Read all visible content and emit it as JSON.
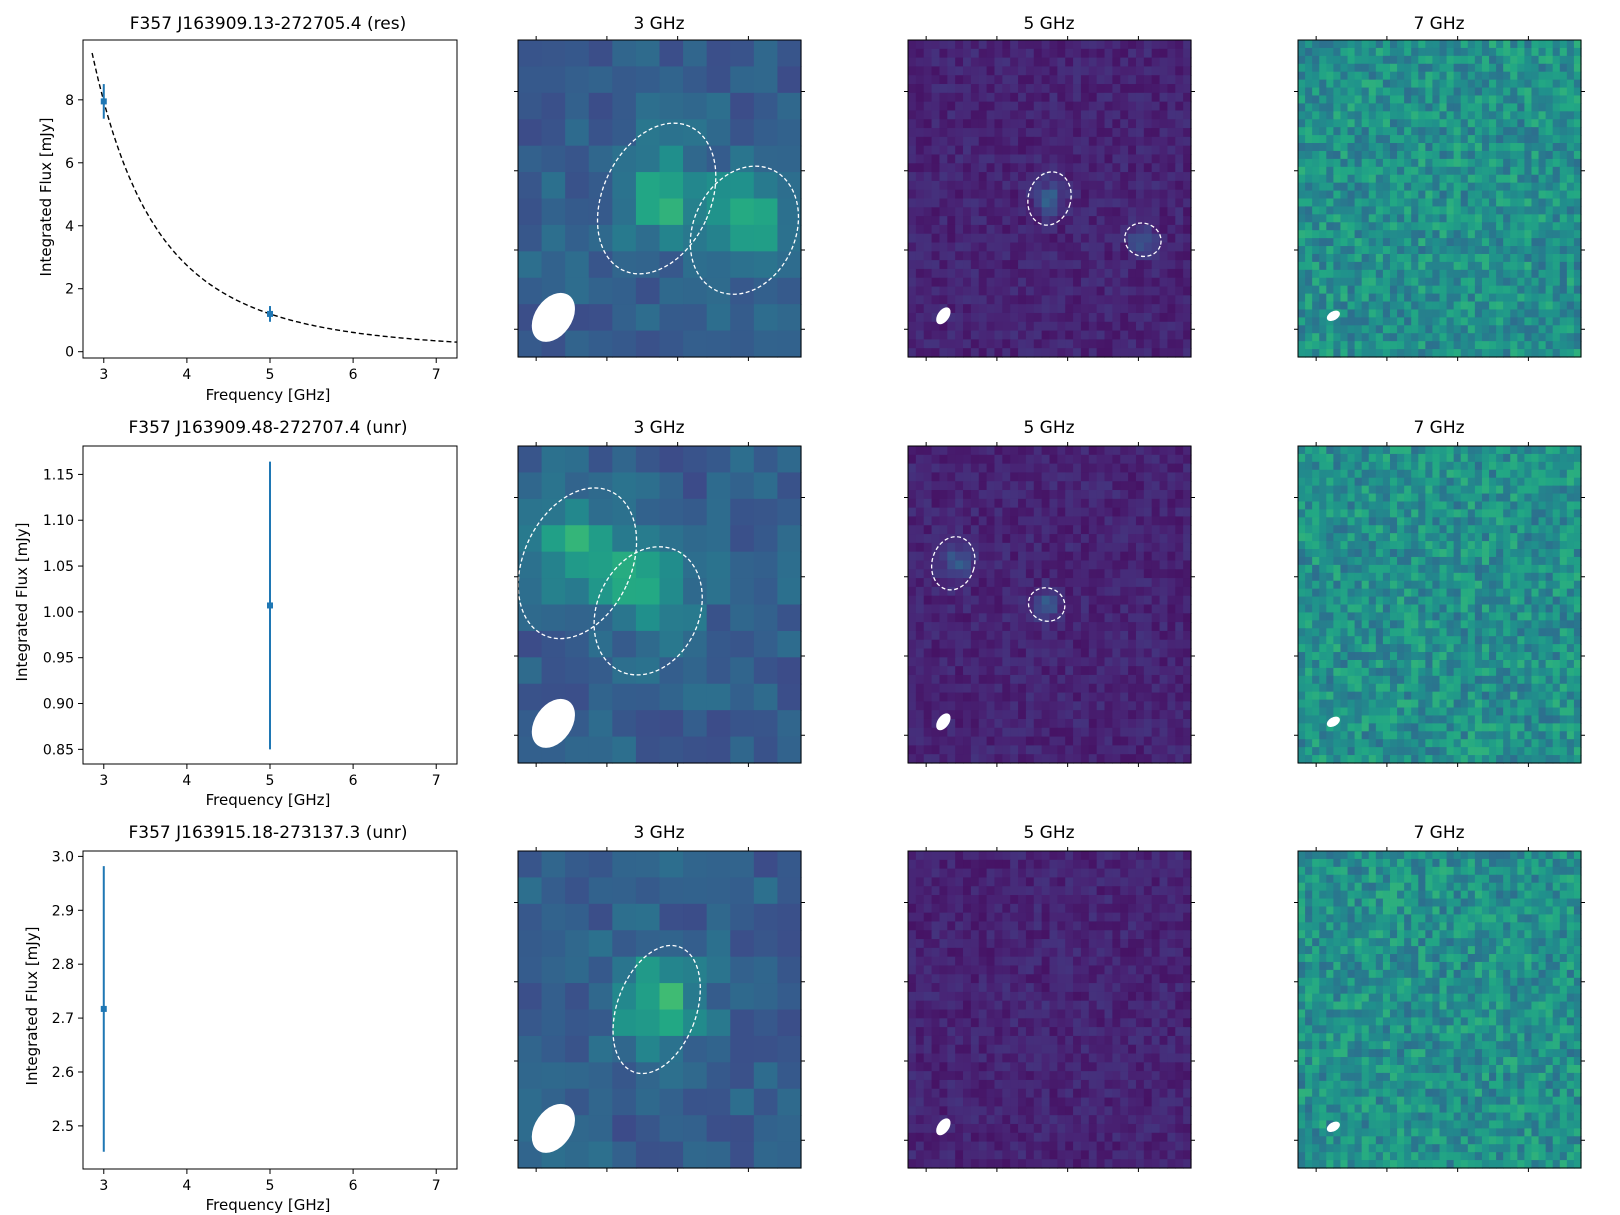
{
  "chart_data": [
    {
      "type": "scatter",
      "title": "F357 J163909.13-272705.4 (res)",
      "xlabel": "Frequency [GHz]",
      "ylabel": "Integrated Flux [mJy]",
      "xlim": [
        2.75,
        7.25
      ],
      "ylim": [
        -0.2,
        9.9
      ],
      "xticks": [
        "3",
        "4",
        "5",
        "6",
        "7"
      ],
      "yticks": [
        "0",
        "2",
        "4",
        "6",
        "8"
      ],
      "points": [
        {
          "x": 3,
          "y": 7.95,
          "err": 0.55
        },
        {
          "x": 5,
          "y": 1.2,
          "err": 0.25
        }
      ],
      "fit_curve": {
        "style": "dashed",
        "model": "power-law",
        "x_start": 2.86,
        "x_end": 7.25,
        "amplitude_at_3": 7.95,
        "index": -3.7
      }
    },
    {
      "type": "scatter",
      "title": "F357 J163909.48-272707.4 (unr)",
      "xlabel": "Frequency [GHz]",
      "ylabel": "Integrated Flux [mJy]",
      "xlim": [
        2.75,
        7.25
      ],
      "ylim": [
        0.834,
        1.181
      ],
      "xticks": [
        "3",
        "4",
        "5",
        "6",
        "7"
      ],
      "yticks": [
        "0.85",
        "0.90",
        "0.95",
        "1.00",
        "1.05",
        "1.10",
        "1.15"
      ],
      "points": [
        {
          "x": 5,
          "y": 1.007,
          "err": 0.157
        }
      ]
    },
    {
      "type": "scatter",
      "title": "F357 J163915.18-273137.3 (unr)",
      "xlabel": "Frequency [GHz]",
      "ylabel": "Integrated Flux [mJy]",
      "xlim": [
        2.75,
        7.25
      ],
      "ylim": [
        2.42,
        3.01
      ],
      "xticks": [
        "3",
        "4",
        "5",
        "6",
        "7"
      ],
      "yticks": [
        "2.5",
        "2.6",
        "2.7",
        "2.8",
        "2.9",
        "3.0"
      ],
      "points": [
        {
          "x": 3,
          "y": 2.717,
          "err": 0.265
        }
      ]
    },
    {
      "type": "heatmap",
      "rows": [
        {
          "panels": [
            {
              "title": "3 GHz",
              "grid": 12,
              "colormap": "viridis",
              "base_level": 0.3,
              "noise": 0.07,
              "seed": 11,
              "sources": [
                {
                  "cx": 0.5,
                  "cy": 0.49,
                  "level": 0.63,
                  "spread": 0.1
                },
                {
                  "cx": 0.8,
                  "cy": 0.56,
                  "level": 0.63,
                  "spread": 0.1
                }
              ],
              "ellipses": [
                {
                  "cx": 0.49,
                  "cy": 0.5,
                  "rx": 0.19,
                  "ry": 0.25,
                  "rot": 25
                },
                {
                  "cx": 0.8,
                  "cy": 0.6,
                  "rx": 0.18,
                  "ry": 0.21,
                  "rot": 25
                }
              ],
              "beam": {
                "cx": 0.125,
                "cy": 0.875,
                "rx": 0.065,
                "ry": 0.085,
                "rot": 35
              }
            },
            {
              "title": "5 GHz",
              "grid": 36,
              "colormap": "viridis",
              "base_level": 0.1,
              "noise": 0.05,
              "seed": 23,
              "sources": [
                {
                  "cx": 0.5,
                  "cy": 0.5,
                  "level": 0.3,
                  "spread": 0.035
                },
                {
                  "cx": 0.83,
                  "cy": 0.63,
                  "level": 0.3,
                  "spread": 0.03
                }
              ],
              "ellipses": [
                {
                  "cx": 0.5,
                  "cy": 0.5,
                  "rx": 0.075,
                  "ry": 0.085,
                  "rot": 15
                },
                {
                  "cx": 0.83,
                  "cy": 0.63,
                  "rx": 0.065,
                  "ry": 0.052,
                  "rot": 20
                }
              ],
              "beam": {
                "cx": 0.125,
                "cy": 0.87,
                "rx": 0.02,
                "ry": 0.03,
                "rot": 35
              }
            },
            {
              "title": "7 GHz",
              "grid": 40,
              "colormap": "viridis",
              "base_level": 0.5,
              "noise": 0.14,
              "seed": 37,
              "sources": [],
              "ellipses": [],
              "beam": {
                "cx": 0.125,
                "cy": 0.87,
                "rx": 0.025,
                "ry": 0.014,
                "rot": -30
              }
            }
          ]
        },
        {
          "panels": [
            {
              "title": "3 GHz",
              "grid": 12,
              "colormap": "viridis",
              "base_level": 0.3,
              "noise": 0.07,
              "seed": 41,
              "sources": [
                {
                  "cx": 0.21,
                  "cy": 0.33,
                  "level": 0.63,
                  "spread": 0.1
                },
                {
                  "cx": 0.46,
                  "cy": 0.45,
                  "level": 0.63,
                  "spread": 0.1
                }
              ],
              "ellipses": [
                {
                  "cx": 0.21,
                  "cy": 0.37,
                  "rx": 0.19,
                  "ry": 0.25,
                  "rot": 25
                },
                {
                  "cx": 0.46,
                  "cy": 0.52,
                  "rx": 0.18,
                  "ry": 0.21,
                  "rot": 25
                }
              ],
              "beam": {
                "cx": 0.125,
                "cy": 0.875,
                "rx": 0.065,
                "ry": 0.085,
                "rot": 35
              }
            },
            {
              "title": "5 GHz",
              "grid": 36,
              "colormap": "viridis",
              "base_level": 0.1,
              "noise": 0.05,
              "seed": 53,
              "sources": [
                {
                  "cx": 0.17,
                  "cy": 0.37,
                  "level": 0.3,
                  "spread": 0.035
                },
                {
                  "cx": 0.49,
                  "cy": 0.5,
                  "level": 0.3,
                  "spread": 0.03
                }
              ],
              "ellipses": [
                {
                  "cx": 0.16,
                  "cy": 0.37,
                  "rx": 0.075,
                  "ry": 0.085,
                  "rot": 15
                },
                {
                  "cx": 0.49,
                  "cy": 0.5,
                  "rx": 0.065,
                  "ry": 0.052,
                  "rot": 20
                }
              ],
              "beam": {
                "cx": 0.125,
                "cy": 0.87,
                "rx": 0.02,
                "ry": 0.03,
                "rot": 35
              }
            },
            {
              "title": "7 GHz",
              "grid": 40,
              "colormap": "viridis",
              "base_level": 0.5,
              "noise": 0.14,
              "seed": 61,
              "sources": [],
              "ellipses": [],
              "beam": {
                "cx": 0.125,
                "cy": 0.87,
                "rx": 0.025,
                "ry": 0.014,
                "rot": -30
              }
            }
          ]
        },
        {
          "panels": [
            {
              "title": "3 GHz",
              "grid": 12,
              "colormap": "viridis",
              "base_level": 0.3,
              "noise": 0.07,
              "seed": 71,
              "sources": [
                {
                  "cx": 0.5,
                  "cy": 0.49,
                  "level": 0.68,
                  "spread": 0.1
                }
              ],
              "ellipses": [
                {
                  "cx": 0.49,
                  "cy": 0.5,
                  "rx": 0.14,
                  "ry": 0.21,
                  "rot": 20
                }
              ],
              "beam": {
                "cx": 0.125,
                "cy": 0.875,
                "rx": 0.065,
                "ry": 0.085,
                "rot": 35
              }
            },
            {
              "title": "5 GHz",
              "grid": 36,
              "colormap": "viridis",
              "base_level": 0.1,
              "noise": 0.05,
              "seed": 83,
              "sources": [
                {
                  "cx": 0.49,
                  "cy": 0.5,
                  "level": 0.15,
                  "spread": 0.02
                }
              ],
              "ellipses": [],
              "beam": {
                "cx": 0.125,
                "cy": 0.87,
                "rx": 0.02,
                "ry": 0.03,
                "rot": 35
              }
            },
            {
              "title": "7 GHz",
              "grid": 40,
              "colormap": "viridis",
              "base_level": 0.5,
              "noise": 0.14,
              "seed": 97,
              "sources": [],
              "ellipses": [],
              "beam": {
                "cx": 0.125,
                "cy": 0.87,
                "rx": 0.025,
                "ry": 0.014,
                "rot": -30
              }
            }
          ]
        }
      ]
    }
  ],
  "colors": {
    "point": "#1f77b4",
    "fit": "#000000",
    "axes": "#000000",
    "ellipse": "#ffffff",
    "beam": "#ffffff"
  }
}
